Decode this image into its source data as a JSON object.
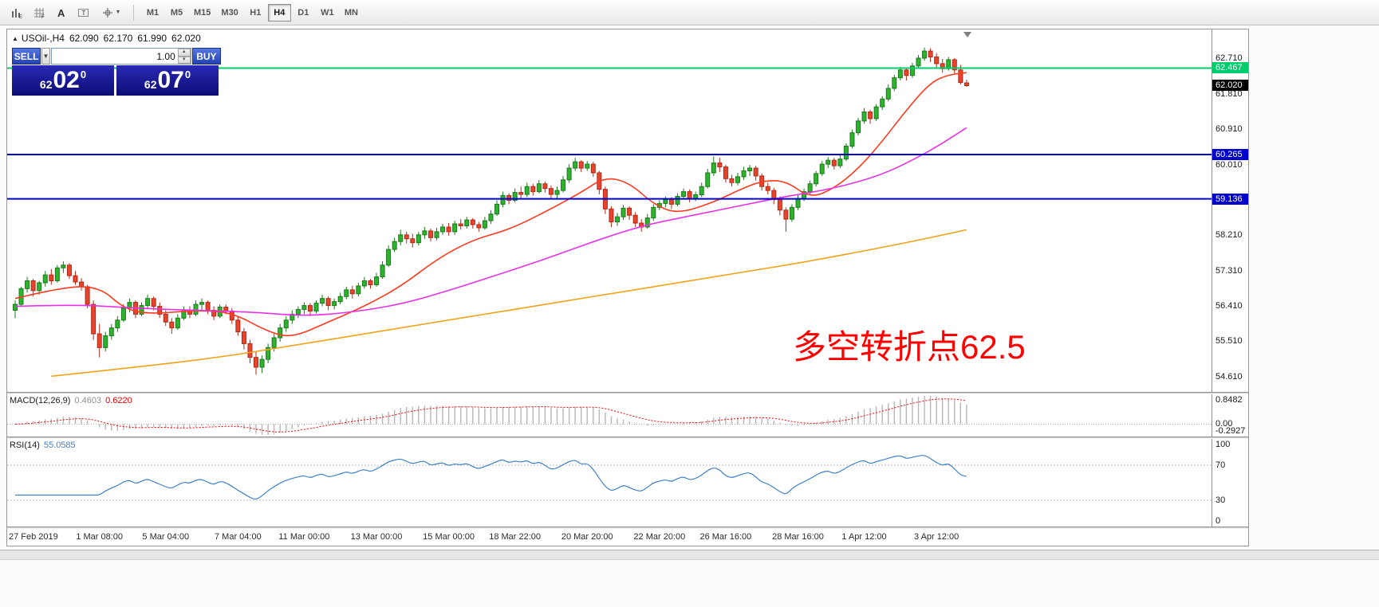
{
  "toolbar": {
    "icons": [
      {
        "name": "bar-chart-icon"
      },
      {
        "name": "grid-icon"
      },
      {
        "name": "font-icon"
      },
      {
        "name": "text-label-icon"
      },
      {
        "name": "crosshair-icon"
      }
    ],
    "timeframes": [
      "M1",
      "M5",
      "M15",
      "M30",
      "H1",
      "H4",
      "D1",
      "W1",
      "MN"
    ],
    "active_timeframe": "H4"
  },
  "trade_panel": {
    "sell_label": "SELL",
    "buy_label": "BUY",
    "volume": "1.00",
    "sell_price": {
      "prefix": "62",
      "main": "02",
      "sup": "0"
    },
    "buy_price": {
      "prefix": "62",
      "main": "07",
      "sup": "0"
    }
  },
  "chart": {
    "header": {
      "collapse_icon": "▲",
      "symbol": "USOil-,H4",
      "open": "62.090",
      "high": "62.170",
      "low": "61.990",
      "close": "62.020"
    },
    "annotation": {
      "text": "多空转折点62.5",
      "color": "#ff0000"
    }
  },
  "colors": {
    "candle_up": "#2db32d",
    "candle_up_border": "#1b7a1b",
    "candle_down": "#e8432c",
    "candle_down_border": "#b02a16",
    "macd_hist": "#b6b6b6",
    "macd_signal": "#ff0000",
    "rsi_line": "#4080c8",
    "bid_tag_bg": "#000000"
  },
  "chart_data": {
    "type": "candlestick",
    "title": "USOil-,H4",
    "candles": [
      [
        56.3,
        56.55,
        56.1,
        56.45
      ],
      [
        56.45,
        56.9,
        56.4,
        56.85
      ],
      [
        56.85,
        57.15,
        56.75,
        57.05
      ],
      [
        57.05,
        57.1,
        56.65,
        56.8
      ],
      [
        56.8,
        57.05,
        56.7,
        57.0
      ],
      [
        57.0,
        57.3,
        56.9,
        57.2
      ],
      [
        57.2,
        57.35,
        56.95,
        57.05
      ],
      [
        57.05,
        57.45,
        57.0,
        57.38
      ],
      [
        57.38,
        57.55,
        57.25,
        57.45
      ],
      [
        57.45,
        57.5,
        57.1,
        57.18
      ],
      [
        57.18,
        57.3,
        56.95,
        57.02
      ],
      [
        57.02,
        57.12,
        56.8,
        56.9
      ],
      [
        56.9,
        56.95,
        56.35,
        56.45
      ],
      [
        56.45,
        56.55,
        55.55,
        55.7
      ],
      [
        55.7,
        55.95,
        55.1,
        55.35
      ],
      [
        55.35,
        55.75,
        55.25,
        55.65
      ],
      [
        55.65,
        55.95,
        55.55,
        55.85
      ],
      [
        55.85,
        56.15,
        55.75,
        56.05
      ],
      [
        56.05,
        56.45,
        56.0,
        56.35
      ],
      [
        56.35,
        56.6,
        56.25,
        56.5
      ],
      [
        56.5,
        56.55,
        56.1,
        56.2
      ],
      [
        56.2,
        56.5,
        56.15,
        56.42
      ],
      [
        56.42,
        56.7,
        56.35,
        56.6
      ],
      [
        56.6,
        56.65,
        56.3,
        56.4
      ],
      [
        56.4,
        56.5,
        56.1,
        56.2
      ],
      [
        56.2,
        56.3,
        55.9,
        56.0
      ],
      [
        56.0,
        56.1,
        55.7,
        55.85
      ],
      [
        55.85,
        56.2,
        55.8,
        56.1
      ],
      [
        56.1,
        56.4,
        56.05,
        56.3
      ],
      [
        56.3,
        56.4,
        56.1,
        56.2
      ],
      [
        56.2,
        56.55,
        56.15,
        56.45
      ],
      [
        56.45,
        56.6,
        56.3,
        56.5
      ],
      [
        56.5,
        56.55,
        56.2,
        56.3
      ],
      [
        56.3,
        56.4,
        56.05,
        56.15
      ],
      [
        56.15,
        56.45,
        56.1,
        56.38
      ],
      [
        56.38,
        56.45,
        56.2,
        56.28
      ],
      [
        56.28,
        56.35,
        55.95,
        56.05
      ],
      [
        56.05,
        56.15,
        55.65,
        55.75
      ],
      [
        55.75,
        55.85,
        55.3,
        55.45
      ],
      [
        55.45,
        55.55,
        54.95,
        55.1
      ],
      [
        55.1,
        55.25,
        54.66,
        54.85
      ],
      [
        54.85,
        55.15,
        54.7,
        55.05
      ],
      [
        55.05,
        55.45,
        54.95,
        55.35
      ],
      [
        55.35,
        55.7,
        55.25,
        55.6
      ],
      [
        55.6,
        55.95,
        55.5,
        55.85
      ],
      [
        55.85,
        56.15,
        55.75,
        56.05
      ],
      [
        56.05,
        56.3,
        55.95,
        56.2
      ],
      [
        56.2,
        56.4,
        56.1,
        56.32
      ],
      [
        56.32,
        56.5,
        56.2,
        56.42
      ],
      [
        56.42,
        56.48,
        56.15,
        56.28
      ],
      [
        56.28,
        56.55,
        56.22,
        56.48
      ],
      [
        56.48,
        56.7,
        56.4,
        56.6
      ],
      [
        56.6,
        56.65,
        56.3,
        56.42
      ],
      [
        56.42,
        56.6,
        56.32,
        56.52
      ],
      [
        56.52,
        56.75,
        56.45,
        56.65
      ],
      [
        56.65,
        56.9,
        56.58,
        56.82
      ],
      [
        56.82,
        56.92,
        56.6,
        56.72
      ],
      [
        56.72,
        57.0,
        56.65,
        56.92
      ],
      [
        56.92,
        57.15,
        56.85,
        57.05
      ],
      [
        57.05,
        57.1,
        56.85,
        56.95
      ],
      [
        56.95,
        57.25,
        56.9,
        57.15
      ],
      [
        57.15,
        57.55,
        57.1,
        57.45
      ],
      [
        57.45,
        57.95,
        57.4,
        57.85
      ],
      [
        57.85,
        58.15,
        57.78,
        58.05
      ],
      [
        58.05,
        58.35,
        57.95,
        58.22
      ],
      [
        58.22,
        58.3,
        58.0,
        58.12
      ],
      [
        58.12,
        58.25,
        57.9,
        58.02
      ],
      [
        58.02,
        58.3,
        57.95,
        58.22
      ],
      [
        58.22,
        58.42,
        58.12,
        58.32
      ],
      [
        58.32,
        58.38,
        58.05,
        58.15
      ],
      [
        58.15,
        58.4,
        58.08,
        58.3
      ],
      [
        58.3,
        58.5,
        58.22,
        58.42
      ],
      [
        58.42,
        58.52,
        58.2,
        58.3
      ],
      [
        58.3,
        58.58,
        58.22,
        58.5
      ],
      [
        58.5,
        58.62,
        58.35,
        58.45
      ],
      [
        58.45,
        58.68,
        58.38,
        58.6
      ],
      [
        58.6,
        58.65,
        58.38,
        58.48
      ],
      [
        58.48,
        58.55,
        58.3,
        58.4
      ],
      [
        58.4,
        58.68,
        58.35,
        58.58
      ],
      [
        58.58,
        58.85,
        58.5,
        58.75
      ],
      [
        58.75,
        59.1,
        58.7,
        59.0
      ],
      [
        59.0,
        59.32,
        58.92,
        59.22
      ],
      [
        59.22,
        59.28,
        59.0,
        59.1
      ],
      [
        59.1,
        59.4,
        59.05,
        59.3
      ],
      [
        59.3,
        59.45,
        59.12,
        59.25
      ],
      [
        59.25,
        59.55,
        59.18,
        59.45
      ],
      [
        59.45,
        59.52,
        59.22,
        59.32
      ],
      [
        59.32,
        59.62,
        59.28,
        59.52
      ],
      [
        59.52,
        59.58,
        59.3,
        59.4
      ],
      [
        59.4,
        59.48,
        59.15,
        59.25
      ],
      [
        59.25,
        59.45,
        59.15,
        59.35
      ],
      [
        59.35,
        59.72,
        59.3,
        59.62
      ],
      [
        59.62,
        60.02,
        59.55,
        59.92
      ],
      [
        59.92,
        60.18,
        59.85,
        60.08
      ],
      [
        60.08,
        60.12,
        59.82,
        59.92
      ],
      [
        59.92,
        60.1,
        59.85,
        60.02
      ],
      [
        60.02,
        60.08,
        59.7,
        59.8
      ],
      [
        59.8,
        59.85,
        59.25,
        59.38
      ],
      [
        59.38,
        59.45,
        58.75,
        58.88
      ],
      [
        58.88,
        58.95,
        58.42,
        58.55
      ],
      [
        58.55,
        58.78,
        58.45,
        58.68
      ],
      [
        58.68,
        58.98,
        58.6,
        58.9
      ],
      [
        58.9,
        58.95,
        58.6,
        58.72
      ],
      [
        58.72,
        58.8,
        58.42,
        58.52
      ],
      [
        58.52,
        58.62,
        58.3,
        58.42
      ],
      [
        58.42,
        58.75,
        58.38,
        58.65
      ],
      [
        58.65,
        59.0,
        58.58,
        58.92
      ],
      [
        58.92,
        59.1,
        58.85,
        59.02
      ],
      [
        59.02,
        59.2,
        58.92,
        59.12
      ],
      [
        59.12,
        59.18,
        58.88,
        59.0
      ],
      [
        59.0,
        59.28,
        58.95,
        59.2
      ],
      [
        59.2,
        59.4,
        59.12,
        59.32
      ],
      [
        59.32,
        59.38,
        59.05,
        59.15
      ],
      [
        59.15,
        59.32,
        59.08,
        59.24
      ],
      [
        59.24,
        59.55,
        59.18,
        59.45
      ],
      [
        59.45,
        59.9,
        59.4,
        59.8
      ],
      [
        59.8,
        60.22,
        59.72,
        60.05
      ],
      [
        60.05,
        60.18,
        59.82,
        59.95
      ],
      [
        59.95,
        60.0,
        59.55,
        59.65
      ],
      [
        59.65,
        59.75,
        59.45,
        59.55
      ],
      [
        59.55,
        59.8,
        59.48,
        59.7
      ],
      [
        59.7,
        59.95,
        59.62,
        59.85
      ],
      [
        59.85,
        60.0,
        59.72,
        59.92
      ],
      [
        59.92,
        59.98,
        59.6,
        59.72
      ],
      [
        59.72,
        59.78,
        59.35,
        59.45
      ],
      [
        59.45,
        59.55,
        59.25,
        59.35
      ],
      [
        59.35,
        59.42,
        59.0,
        59.12
      ],
      [
        59.12,
        59.2,
        58.72,
        58.85
      ],
      [
        58.85,
        58.92,
        58.3,
        58.62
      ],
      [
        58.62,
        59.0,
        58.55,
        58.92
      ],
      [
        58.92,
        59.25,
        58.85,
        59.15
      ],
      [
        59.15,
        59.4,
        59.08,
        59.32
      ],
      [
        59.32,
        59.6,
        59.25,
        59.52
      ],
      [
        59.52,
        59.85,
        59.45,
        59.78
      ],
      [
        59.78,
        60.1,
        59.72,
        60.02
      ],
      [
        60.02,
        60.2,
        59.92,
        60.12
      ],
      [
        60.12,
        60.18,
        59.88,
        59.98
      ],
      [
        59.98,
        60.25,
        59.92,
        60.15
      ],
      [
        60.15,
        60.55,
        60.1,
        60.48
      ],
      [
        60.48,
        60.9,
        60.42,
        60.82
      ],
      [
        60.82,
        61.2,
        60.75,
        61.12
      ],
      [
        61.12,
        61.45,
        61.05,
        61.35
      ],
      [
        61.35,
        61.4,
        61.05,
        61.18
      ],
      [
        61.18,
        61.55,
        61.12,
        61.48
      ],
      [
        61.48,
        61.75,
        61.4,
        61.68
      ],
      [
        61.68,
        62.05,
        61.62,
        61.95
      ],
      [
        61.95,
        62.3,
        61.88,
        62.22
      ],
      [
        62.22,
        62.5,
        62.15,
        62.42
      ],
      [
        62.42,
        62.48,
        62.15,
        62.28
      ],
      [
        62.28,
        62.6,
        62.22,
        62.52
      ],
      [
        62.52,
        62.8,
        62.45,
        62.72
      ],
      [
        62.72,
        62.99,
        62.65,
        62.9
      ],
      [
        62.9,
        62.97,
        62.62,
        62.75
      ],
      [
        62.75,
        62.85,
        62.45,
        62.58
      ],
      [
        62.58,
        62.7,
        62.35,
        62.45
      ],
      [
        62.45,
        62.75,
        62.4,
        62.68
      ],
      [
        62.68,
        62.72,
        62.3,
        62.42
      ],
      [
        62.42,
        62.55,
        62.05,
        62.1
      ],
      [
        62.09,
        62.17,
        61.99,
        62.02
      ]
    ],
    "price_ticks": [
      62.71,
      61.81,
      60.91,
      60.01,
      59.11,
      58.21,
      57.31,
      56.41,
      55.51,
      54.61
    ],
    "hlines": [
      {
        "price": 62.467,
        "label": "62.467",
        "color": "#00cc6e"
      },
      {
        "price": 60.265,
        "label": "60.265",
        "color": "#0000cc"
      },
      {
        "price": 59.136,
        "label": "59.136",
        "color": "#0000cc"
      }
    ],
    "bid": {
      "price": 62.02,
      "label": "62.020"
    },
    "time_labels": [
      {
        "label": "27 Feb 2019",
        "bar": 3
      },
      {
        "label": "1 Mar 08:00",
        "bar": 14
      },
      {
        "label": "5 Mar 04:00",
        "bar": 25
      },
      {
        "label": "7 Mar 04:00",
        "bar": 37
      },
      {
        "label": "11 Mar 00:00",
        "bar": 48
      },
      {
        "label": "13 Mar 00:00",
        "bar": 60
      },
      {
        "label": "15 Mar 00:00",
        "bar": 72
      },
      {
        "label": "18 Mar 22:00",
        "bar": 83
      },
      {
        "label": "20 Mar 20:00",
        "bar": 95
      },
      {
        "label": "22 Mar 20:00",
        "bar": 107
      },
      {
        "label": "26 Mar 16:00",
        "bar": 118
      },
      {
        "label": "28 Mar 16:00",
        "bar": 130
      },
      {
        "label": "1 Apr 12:00",
        "bar": 141
      },
      {
        "label": "3 Apr 12:00",
        "bar": 153
      }
    ],
    "ma_lines": [
      {
        "name": "fast-ma",
        "color": "#ff3b1e",
        "points": [
          [
            0,
            56.6
          ],
          [
            8,
            56.9
          ],
          [
            14,
            56.9
          ],
          [
            18,
            56.35
          ],
          [
            22,
            56.2
          ],
          [
            30,
            56.3
          ],
          [
            36,
            56.25
          ],
          [
            42,
            55.75
          ],
          [
            46,
            55.6
          ],
          [
            52,
            56.0
          ],
          [
            58,
            56.4
          ],
          [
            64,
            56.9
          ],
          [
            70,
            57.6
          ],
          [
            76,
            58.1
          ],
          [
            82,
            58.35
          ],
          [
            88,
            58.8
          ],
          [
            94,
            59.3
          ],
          [
            98,
            59.7
          ],
          [
            102,
            59.55
          ],
          [
            106,
            59.0
          ],
          [
            110,
            58.75
          ],
          [
            116,
            59.05
          ],
          [
            120,
            59.35
          ],
          [
            124,
            59.6
          ],
          [
            128,
            59.6
          ],
          [
            132,
            59.15
          ],
          [
            136,
            59.4
          ],
          [
            140,
            59.9
          ],
          [
            144,
            60.6
          ],
          [
            148,
            61.4
          ],
          [
            152,
            62.1
          ],
          [
            155,
            62.3
          ],
          [
            158,
            62.35
          ]
        ]
      },
      {
        "name": "mid-ma",
        "color": "#e832e8",
        "points": [
          [
            0,
            56.4
          ],
          [
            10,
            56.45
          ],
          [
            20,
            56.35
          ],
          [
            30,
            56.3
          ],
          [
            40,
            56.25
          ],
          [
            48,
            56.15
          ],
          [
            56,
            56.25
          ],
          [
            64,
            56.45
          ],
          [
            72,
            56.8
          ],
          [
            80,
            57.2
          ],
          [
            88,
            57.6
          ],
          [
            96,
            58.05
          ],
          [
            104,
            58.45
          ],
          [
            112,
            58.7
          ],
          [
            120,
            58.95
          ],
          [
            128,
            59.2
          ],
          [
            136,
            59.4
          ],
          [
            144,
            59.75
          ],
          [
            150,
            60.2
          ],
          [
            154,
            60.55
          ],
          [
            158,
            60.95
          ]
        ]
      },
      {
        "name": "slow-ma",
        "color": "#f2a119",
        "points": [
          [
            6,
            54.62
          ],
          [
            20,
            54.85
          ],
          [
            34,
            55.1
          ],
          [
            48,
            55.45
          ],
          [
            62,
            55.8
          ],
          [
            76,
            56.15
          ],
          [
            90,
            56.5
          ],
          [
            104,
            56.85
          ],
          [
            118,
            57.2
          ],
          [
            132,
            57.55
          ],
          [
            144,
            57.9
          ],
          [
            152,
            58.15
          ],
          [
            158,
            58.35
          ]
        ]
      }
    ],
    "macd": {
      "label": "MACD(12,26,9)",
      "value_main": "0.4603",
      "value_signal": "0.6220",
      "fast": 12,
      "slow": 26,
      "signal_period": 9,
      "axis_max": "0.8482",
      "axis_zero": "0.00",
      "axis_min": "-0.2927"
    },
    "rsi": {
      "label": "RSI(14)",
      "value": "55.0585",
      "period": 14,
      "levels": [
        70,
        30
      ],
      "axis": [
        100,
        70,
        30,
        0
      ]
    }
  }
}
